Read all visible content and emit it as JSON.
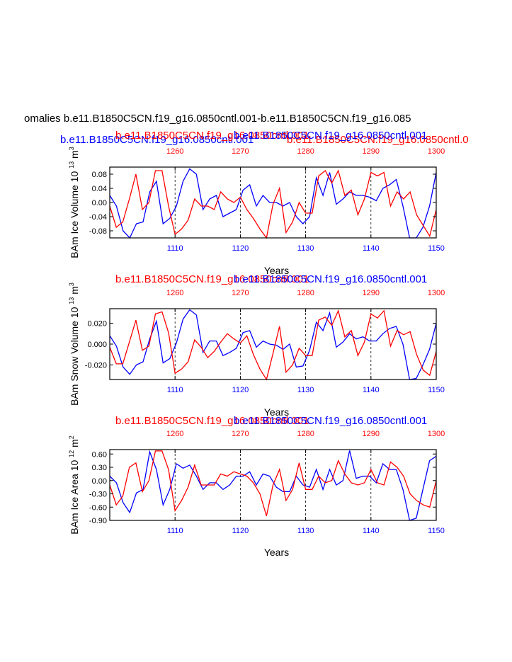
{
  "page": {
    "main_title": "omalies b.e11.B1850C5CN.f19_g16.0850cntl.001-b.e11.B1850C5CN.f19_g16.085"
  },
  "colors": {
    "blue": "#0000ff",
    "red": "#ff0000",
    "axis": "#000000"
  },
  "chart_data": [
    {
      "type": "line",
      "title_blue": "b.e11.B1850C5CN.f19_g16.0850cntl.001",
      "title_red": "b.e11.B1850C5CN.f19_g16.0850cntl.0",
      "top_overlap_label_red": "b.e11.B1850C5CN.f19_g16.0850cntl.001",
      "top_overlap_label_blue": "b.e11.B1850C5CN.f19_g16.0850cntl.001",
      "ylabel": "BAm Ice Volume 10",
      "ylabel_exp": "13",
      "ylabel_unit": "m",
      "ylabel_unit_exp": "3",
      "xlabel": "Years",
      "ylim": [
        -0.1,
        0.1
      ],
      "yticks": [
        0.08,
        0.04,
        0.0,
        -0.04,
        -0.08
      ],
      "ytick_labels": [
        "0.08",
        "0.04",
        "0.00",
        "-0.04",
        "-0.08"
      ],
      "x_bottom": {
        "lim": [
          1100,
          1150
        ],
        "ticks": [
          1110,
          1120,
          1130,
          1140,
          1150
        ]
      },
      "x_top": {
        "lim": [
          1250,
          1300
        ],
        "ticks": [
          1260,
          1270,
          1280,
          1290,
          1300
        ]
      },
      "grid_x": [
        1110,
        1120,
        1130,
        1140
      ],
      "series": [
        {
          "color": "blue",
          "x_axis": "bottom",
          "values": [
            0.02,
            -0.01,
            -0.08,
            -0.1,
            -0.06,
            -0.055,
            0.03,
            0.06,
            -0.06,
            -0.045,
            -0.01,
            0.06,
            0.095,
            0.08,
            -0.02,
            0.01,
            0.02,
            -0.04,
            -0.03,
            -0.02,
            0.035,
            0.05,
            -0.01,
            0.02,
            0.0,
            0.0,
            -0.01,
            0.0,
            -0.04,
            -0.06,
            -0.04,
            0.07,
            0.02,
            0.085,
            -0.005,
            0.01,
            0.03,
            0.02,
            0.02,
            0.015,
            0.005,
            0.04,
            0.05,
            0.065,
            -0.01,
            -0.11,
            -0.11,
            -0.07,
            -0.01,
            0.085
          ]
        },
        {
          "color": "red",
          "x_axis": "top",
          "values": [
            -0.01,
            -0.07,
            -0.055,
            0.01,
            0.08,
            -0.02,
            0.0,
            0.09,
            0.09,
            -0.01,
            -0.09,
            -0.075,
            -0.05,
            0.01,
            -0.01,
            -0.01,
            -0.02,
            0.03,
            0.01,
            0.0,
            0.015,
            -0.02,
            -0.045,
            -0.075,
            -0.1,
            -0.005,
            0.04,
            -0.085,
            -0.055,
            0.0,
            -0.03,
            -0.03,
            0.075,
            0.09,
            0.055,
            0.09,
            0.02,
            0.035,
            -0.035,
            0.01,
            0.085,
            0.075,
            0.085,
            -0.01,
            0.03,
            0.01,
            0.03,
            -0.035,
            -0.065,
            -0.095,
            -0.02
          ]
        }
      ]
    },
    {
      "type": "line",
      "title_red": "b.e11.B1850C5CN.f19_g16.0850cntl.001",
      "title_blue": "b.e11.B1850C5CN.f19_g16.0850cntl.001",
      "ylabel": "BAm Snow Volume 10",
      "ylabel_exp": "13",
      "ylabel_unit": "m",
      "ylabel_unit_exp": "3",
      "xlabel": "Years",
      "ylim": [
        -0.034,
        0.034
      ],
      "yticks": [
        0.02,
        0.0,
        -0.02
      ],
      "ytick_labels": [
        "0.020",
        "0.000",
        "-0.020"
      ],
      "x_bottom": {
        "lim": [
          1100,
          1150
        ],
        "ticks": [
          1110,
          1120,
          1130,
          1140,
          1150
        ]
      },
      "x_top": {
        "lim": [
          1250,
          1300
        ],
        "ticks": [
          1260,
          1270,
          1280,
          1290,
          1300
        ]
      },
      "grid_x": [
        1110,
        1120,
        1130,
        1140
      ],
      "series": [
        {
          "color": "blue",
          "x_axis": "bottom",
          "values": [
            0.008,
            -0.002,
            -0.022,
            -0.029,
            -0.02,
            -0.017,
            0.005,
            0.022,
            -0.018,
            -0.014,
            0.001,
            0.024,
            0.033,
            0.028,
            -0.008,
            0.003,
            0.003,
            -0.011,
            -0.008,
            -0.004,
            0.011,
            0.013,
            -0.003,
            0.003,
            0.0,
            -0.001,
            -0.005,
            0.0,
            -0.022,
            -0.021,
            -0.006,
            0.021,
            0.013,
            0.03,
            -0.003,
            0.002,
            0.01,
            0.005,
            0.007,
            0.003,
            0.003,
            0.01,
            0.015,
            0.017,
            0.0,
            -0.034,
            -0.033,
            -0.02,
            -0.005,
            0.02
          ]
        },
        {
          "color": "red",
          "x_axis": "top",
          "values": [
            -0.003,
            -0.019,
            -0.019,
            0.002,
            0.023,
            -0.006,
            -0.002,
            0.029,
            0.031,
            0.011,
            -0.028,
            -0.024,
            -0.017,
            0.004,
            -0.003,
            -0.013,
            -0.007,
            0.002,
            0.01,
            0.005,
            0.001,
            0.008,
            -0.01,
            -0.024,
            -0.034,
            -0.009,
            0.017,
            -0.027,
            -0.02,
            -0.004,
            -0.011,
            -0.011,
            0.023,
            0.026,
            0.018,
            0.032,
            0.007,
            0.013,
            -0.011,
            0.002,
            0.029,
            0.025,
            0.032,
            -0.002,
            0.013,
            0.009,
            0.012,
            -0.01,
            -0.025,
            -0.03,
            -0.007
          ]
        }
      ]
    },
    {
      "type": "line",
      "title_red": "b.e11.B1850C5CN.f19_g16.0850cntl.001",
      "title_blue": "b.e11.B1850C5CN.f19_g16.0850cntl.001",
      "ylabel": "BAm Ice Area 10",
      "ylabel_exp": "12",
      "ylabel_unit": "m",
      "ylabel_unit_exp": "2",
      "xlabel": "Years",
      "ylim": [
        -0.9,
        0.7
      ],
      "yticks": [
        0.6,
        0.3,
        0.0,
        -0.3,
        -0.6,
        -0.9
      ],
      "ytick_labels": [
        "0.60",
        "0.30",
        "0.00",
        "-0.30",
        "-0.60",
        "-0.90"
      ],
      "x_bottom": {
        "lim": [
          1100,
          1150
        ],
        "ticks": [
          1110,
          1120,
          1130,
          1140,
          1150
        ]
      },
      "x_top": {
        "lim": [
          1250,
          1300
        ],
        "ticks": [
          1260,
          1270,
          1280,
          1290,
          1300
        ]
      },
      "grid_x": [
        1110,
        1120,
        1130,
        1140
      ],
      "series": [
        {
          "color": "blue",
          "x_axis": "bottom",
          "values": [
            0.1,
            -0.05,
            -0.5,
            -0.72,
            -0.28,
            -0.2,
            0.65,
            0.25,
            -0.55,
            -0.2,
            0.38,
            0.28,
            0.35,
            0.1,
            -0.2,
            -0.05,
            -0.05,
            -0.2,
            -0.1,
            0.1,
            0.1,
            0.2,
            -0.1,
            0.15,
            0.1,
            -0.15,
            -0.25,
            -0.25,
            0.1,
            -0.1,
            -0.15,
            0.25,
            -0.2,
            0.25,
            -0.1,
            0.0,
            0.68,
            0.05,
            0.1,
            0.1,
            -0.05,
            0.38,
            0.25,
            0.25,
            -0.2,
            -0.9,
            -0.85,
            -0.2,
            0.45,
            0.55
          ]
        },
        {
          "color": "red",
          "x_axis": "top",
          "values": [
            -0.1,
            -0.55,
            -0.35,
            0.3,
            0.4,
            -0.25,
            0.0,
            0.67,
            0.67,
            0.25,
            -0.68,
            -0.45,
            -0.15,
            0.35,
            -0.1,
            -0.1,
            -0.1,
            0.15,
            0.1,
            0.2,
            0.15,
            0.1,
            -0.05,
            -0.3,
            -0.8,
            -0.1,
            0.25,
            -0.45,
            -0.2,
            0.4,
            -0.2,
            -0.2,
            0.1,
            -0.05,
            0.0,
            0.45,
            0.15,
            -0.05,
            -0.1,
            -0.05,
            0.25,
            -0.05,
            -0.1,
            0.42,
            0.3,
            0.1,
            -0.3,
            -0.45,
            -0.55,
            -0.6,
            0.0
          ]
        }
      ]
    }
  ]
}
